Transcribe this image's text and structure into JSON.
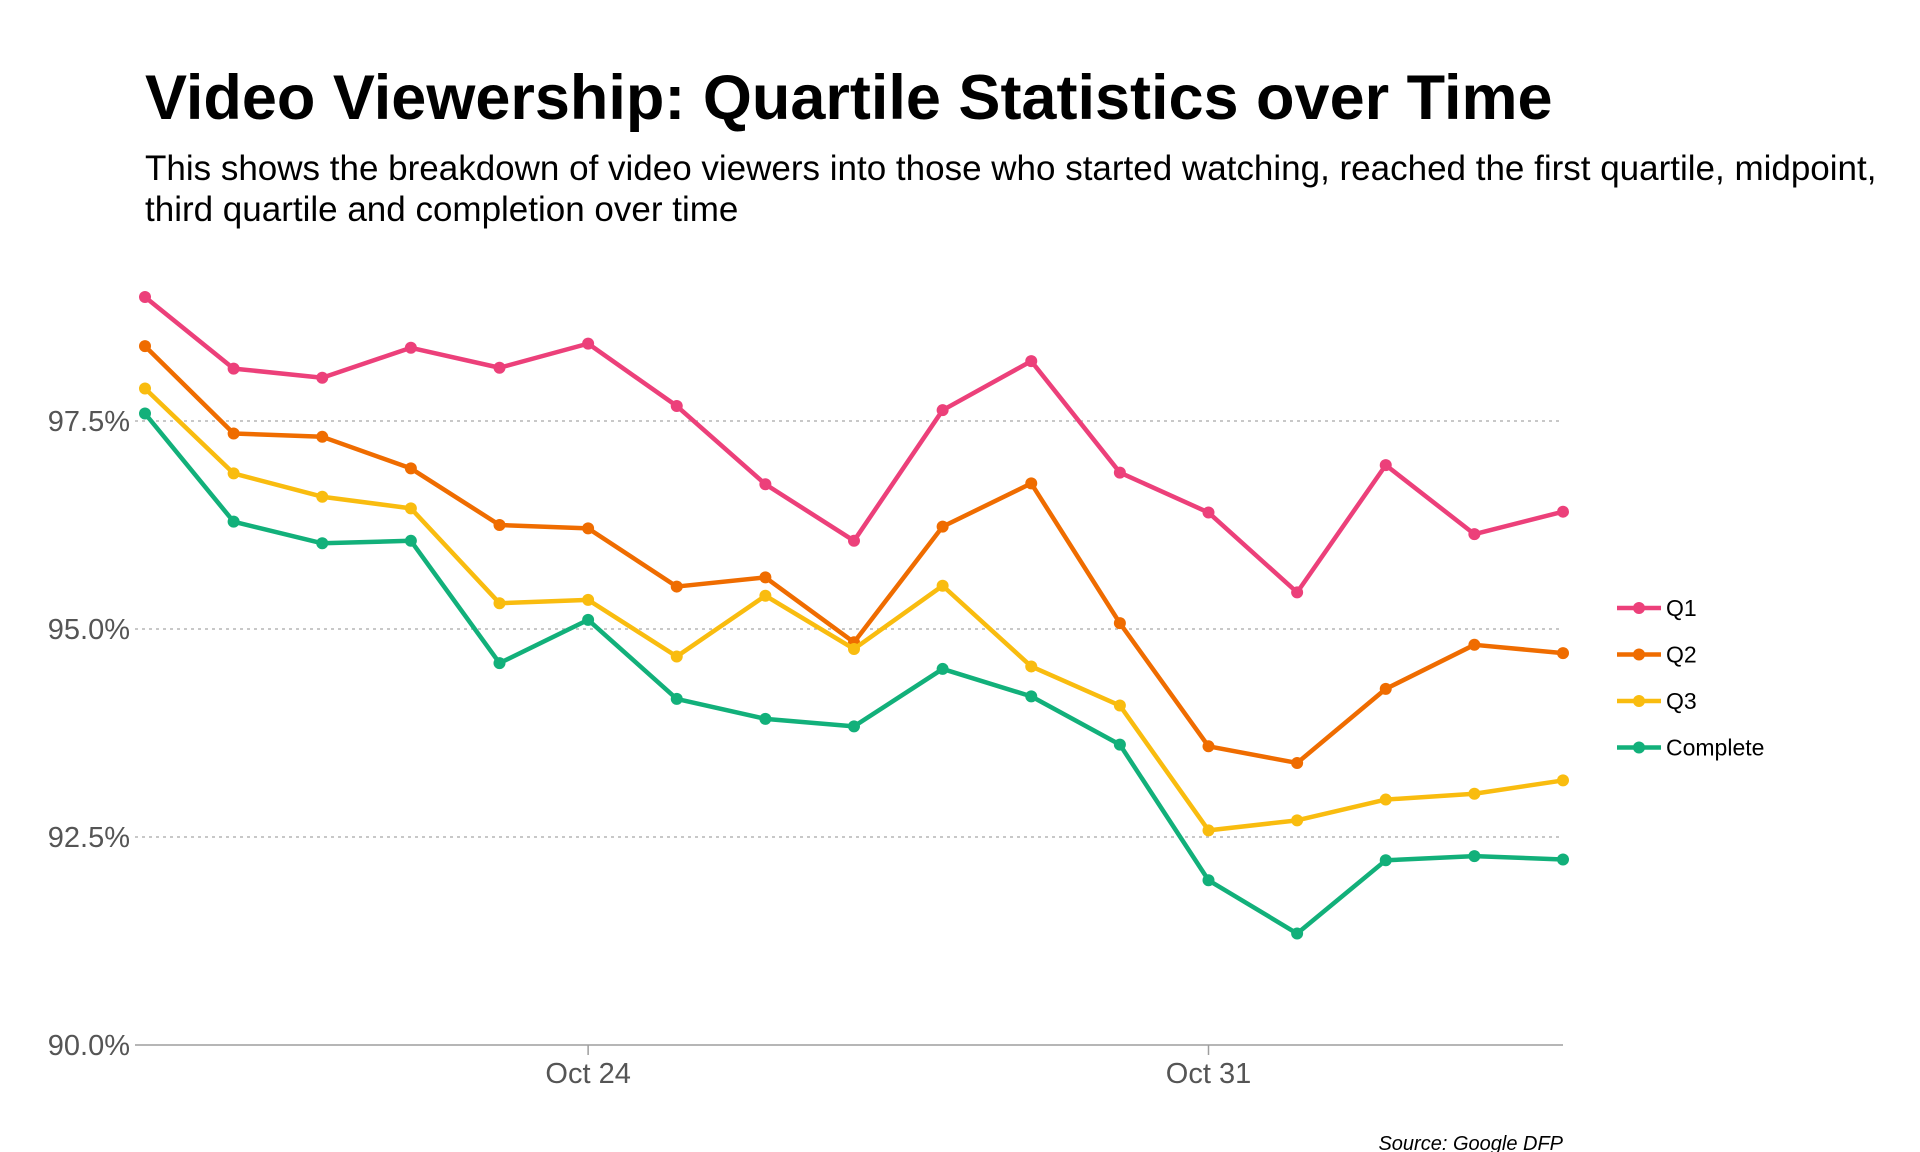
{
  "chart_data": {
    "type": "line",
    "title": "Video Viewership: Quartile Statistics over Time",
    "subtitle": "This shows the breakdown of video viewers into those who started watching, reached the first quartile, midpoint, third quartile and completion over time",
    "caption": "Source: Google DFP",
    "xlabel": "",
    "ylabel": "",
    "x_ticks": [
      "Oct 24",
      "Oct 31"
    ],
    "x": [
      "Oct 19",
      "Oct 20",
      "Oct 21",
      "Oct 22",
      "Oct 23",
      "Oct 24",
      "Oct 25",
      "Oct 26",
      "Oct 27",
      "Oct 28",
      "Oct 29",
      "Oct 30",
      "Oct 31",
      "Nov 1",
      "Nov 2",
      "Nov 3",
      "Nov 4"
    ],
    "y_ticks": [
      "90.0%",
      "92.5%",
      "95.0%",
      "97.5%"
    ],
    "y_tick_values": [
      90.0,
      92.5,
      95.0,
      97.5
    ],
    "ylim": [
      90.0,
      99.0
    ],
    "grid": "horizontal dotted",
    "legend_position": "right",
    "series": [
      {
        "name": "Q1",
        "color": "#EC407A",
        "values": [
          98.99,
          98.13,
          98.02,
          98.38,
          98.14,
          98.43,
          97.68,
          96.74,
          96.06,
          97.63,
          98.22,
          96.88,
          96.4,
          95.44,
          96.97,
          96.14,
          96.41
        ]
      },
      {
        "name": "Q2",
        "color": "#EF6C00",
        "values": [
          98.4,
          97.35,
          97.31,
          96.93,
          96.25,
          96.21,
          95.51,
          95.62,
          94.84,
          96.23,
          96.75,
          95.07,
          93.59,
          93.39,
          94.28,
          94.81,
          94.71
        ]
      },
      {
        "name": "Q3",
        "color": "#F9BC0F",
        "values": [
          97.89,
          96.87,
          96.59,
          96.45,
          95.31,
          95.35,
          94.67,
          95.4,
          94.76,
          95.52,
          94.55,
          94.08,
          92.58,
          92.7,
          92.95,
          93.02,
          93.18
        ]
      },
      {
        "name": "Complete",
        "color": "#12B07A",
        "values": [
          97.59,
          96.29,
          96.03,
          96.06,
          94.59,
          95.11,
          94.16,
          93.92,
          93.83,
          94.52,
          94.19,
          93.61,
          91.98,
          91.34,
          92.22,
          92.27,
          92.23
        ]
      }
    ]
  }
}
